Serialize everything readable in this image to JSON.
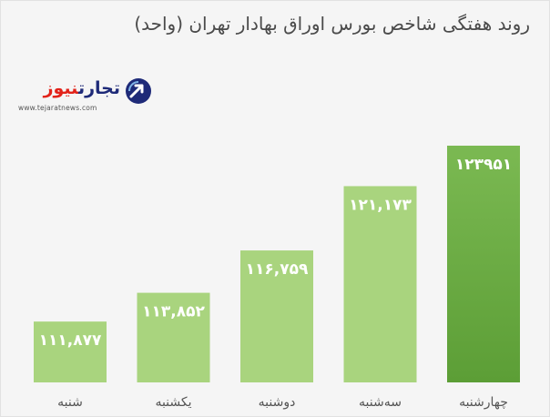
{
  "chart_data": {
    "type": "bar",
    "title": "روند هفتگی شاخص بورس اوراق بهادار تهران (واحد)",
    "categories": [
      "شنبه",
      "یکشنبه",
      "دوشنبه",
      "سه‌شنبه",
      "چهارشنبه"
    ],
    "values": [
      111877,
      113852,
      116759,
      121173,
      123951
    ],
    "value_labels": [
      "۱۱۱,۸۷۷",
      "۱۱۳,۸۵۲",
      "۱۱۶,۷۵۹",
      "۱۲۱,۱۷۳",
      "۱۲۳۹۵۱"
    ],
    "highlight_index": 4,
    "colors": {
      "bar": "#a9d47e",
      "highlight_top": "#7bb952",
      "highlight_bottom": "#5c9e36"
    },
    "grid": false
  },
  "logo": {
    "word_part1": "نیوز",
    "word_part2": "تجارت",
    "url": "www.tejaratnews.com",
    "icon": "arrow-up-circle-icon",
    "color": "#1e2a78"
  }
}
